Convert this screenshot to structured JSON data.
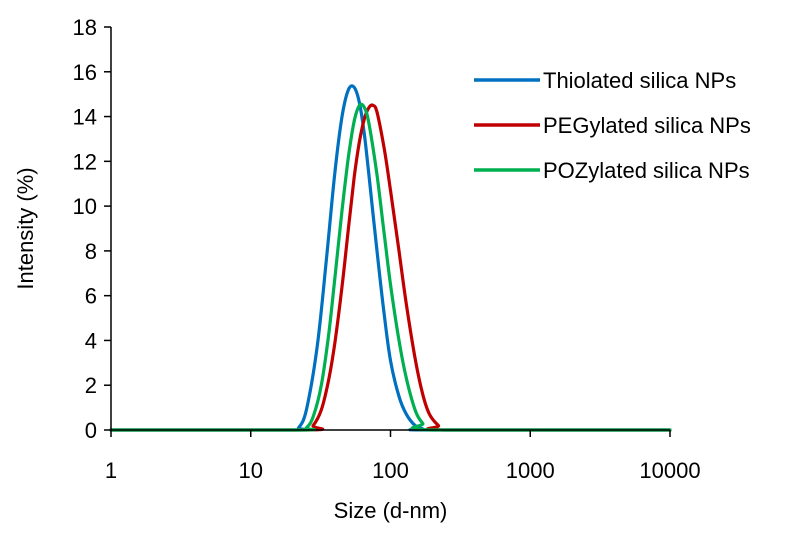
{
  "chart_data": {
    "type": "line",
    "title": "",
    "xlabel": "Size (d-nm)",
    "ylabel": "Intensity (%)",
    "x_scale": "log",
    "xlim": [
      1,
      10000
    ],
    "ylim": [
      0,
      18
    ],
    "x_ticks": [
      "1",
      "10",
      "100",
      "1000",
      "10000"
    ],
    "y_ticks": [
      "0",
      "2",
      "4",
      "6",
      "8",
      "10",
      "12",
      "14",
      "16",
      "18"
    ],
    "grid": false,
    "legend_position": "right",
    "series": [
      {
        "name": "Thiolated silica NPs",
        "color": "#0070C0",
        "x": [
          1,
          20,
          22,
          25,
          30,
          35,
          40,
          45,
          50,
          55,
          60,
          65,
          70,
          80,
          90,
          100,
          115,
          130,
          150,
          170,
          190,
          10000
        ],
        "y": [
          0,
          0,
          0.1,
          0.9,
          3.8,
          7.8,
          11.5,
          14.0,
          15.2,
          15.3,
          14.6,
          13.2,
          11.4,
          8.0,
          5.2,
          3.1,
          1.5,
          0.7,
          0.2,
          0.05,
          0,
          0
        ]
      },
      {
        "name": "PEGylated silica NPs",
        "color": "#C00000",
        "x": [
          1,
          25,
          28,
          32,
          36,
          40,
          45,
          50,
          55,
          60,
          65,
          70,
          75,
          80,
          90,
          100,
          115,
          130,
          150,
          170,
          190,
          220,
          250,
          10000
        ],
        "y": [
          0,
          0,
          0.2,
          0.9,
          2.2,
          3.9,
          6.4,
          9.0,
          11.3,
          12.9,
          13.9,
          14.4,
          14.5,
          14.2,
          12.6,
          10.7,
          8.0,
          5.6,
          3.2,
          1.6,
          0.7,
          0.2,
          0,
          0
        ]
      },
      {
        "name": "POZylated silica NPs",
        "color": "#00B050",
        "x": [
          1,
          22,
          25,
          28,
          32,
          36,
          40,
          45,
          50,
          55,
          60,
          65,
          70,
          80,
          90,
          100,
          115,
          130,
          150,
          170,
          200,
          10000
        ],
        "y": [
          0,
          0,
          0.1,
          0.6,
          2.0,
          4.2,
          6.8,
          9.8,
          12.2,
          13.8,
          14.5,
          14.4,
          13.7,
          11.4,
          8.8,
          6.5,
          4.0,
          2.3,
          0.9,
          0.3,
          0,
          0
        ]
      }
    ]
  }
}
